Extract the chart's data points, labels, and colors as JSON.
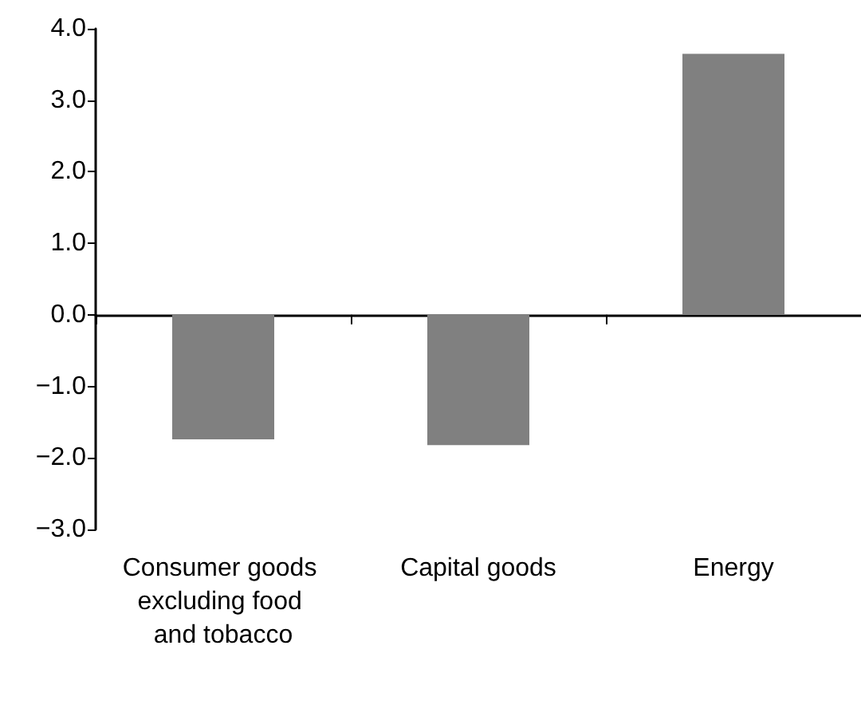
{
  "chart_data": {
    "type": "bar",
    "categories": [
      "Consumer goods excluding food and tobacco",
      "Capital goods",
      "Energy"
    ],
    "values": [
      -1.74,
      -1.82,
      3.65
    ],
    "color": "#808080",
    "ylim": [
      -3,
      4
    ],
    "yticks": [
      {
        "value": -3,
        "label": "−3.0"
      },
      {
        "value": -2,
        "label": "−2.0"
      },
      {
        "value": -1,
        "label": "−1.0"
      },
      {
        "value": 0,
        "label": "0.0"
      },
      {
        "value": 1,
        "label": "1.0"
      },
      {
        "value": 2,
        "label": "2.0"
      },
      {
        "value": 3,
        "label": "3.0"
      },
      {
        "value": 4,
        "label": "4.0"
      }
    ],
    "data_labels": false
  }
}
